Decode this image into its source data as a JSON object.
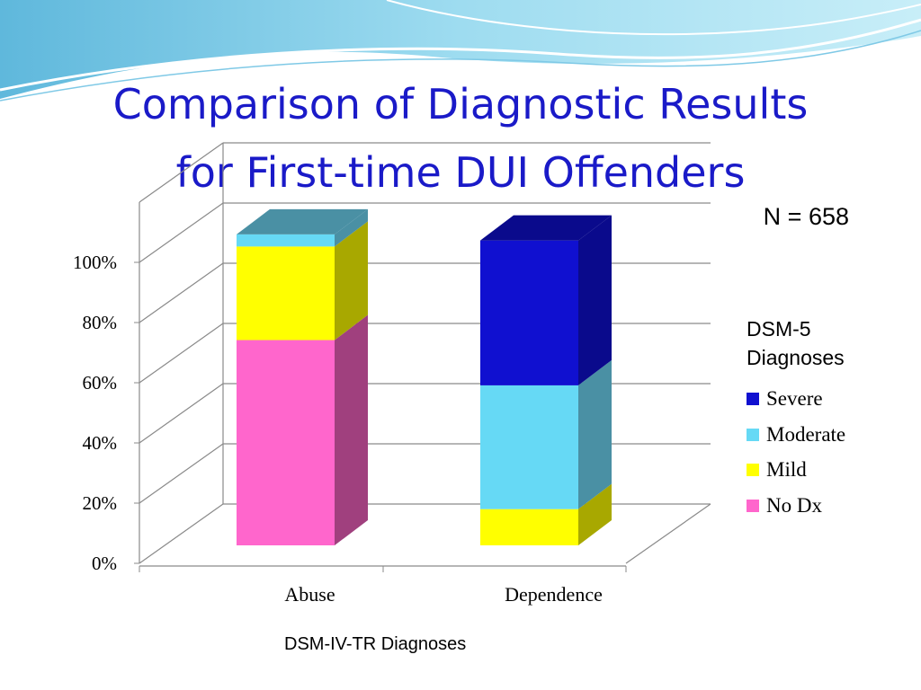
{
  "slide": {
    "title_line1": "Comparison of Diagnostic Results",
    "title_line2": "for First-time DUI Offenders",
    "n_label": "N = 658",
    "legend_title_line1": "DSM-5",
    "legend_title_line2": "Diagnoses",
    "title_color": "#1a1ac8"
  },
  "chart_data": {
    "type": "bar",
    "stacked": true,
    "three_d": true,
    "categories": [
      "Abuse",
      "Dependence"
    ],
    "series": [
      {
        "name": "No Dx",
        "values": [
          68,
          0
        ],
        "color": "#ff66cc",
        "side_color": "#a0407e"
      },
      {
        "name": "Mild",
        "values": [
          31,
          12
        ],
        "color": "#ffff00",
        "side_color": "#a8a800"
      },
      {
        "name": "Moderate",
        "values": [
          4,
          41
        ],
        "color": "#66d9f5",
        "side_color": "#4a90a4"
      },
      {
        "name": "Severe",
        "values": [
          0,
          48
        ],
        "color": "#1010d0",
        "side_color": "#0a0a8c"
      }
    ],
    "xlabel": "DSM-IV-TR Diagnoses",
    "ylabel": "",
    "yticks": [
      "0%",
      "20%",
      "40%",
      "60%",
      "80%",
      "100%"
    ],
    "ylim": [
      0,
      100
    ],
    "grid": true,
    "legend": "right"
  }
}
